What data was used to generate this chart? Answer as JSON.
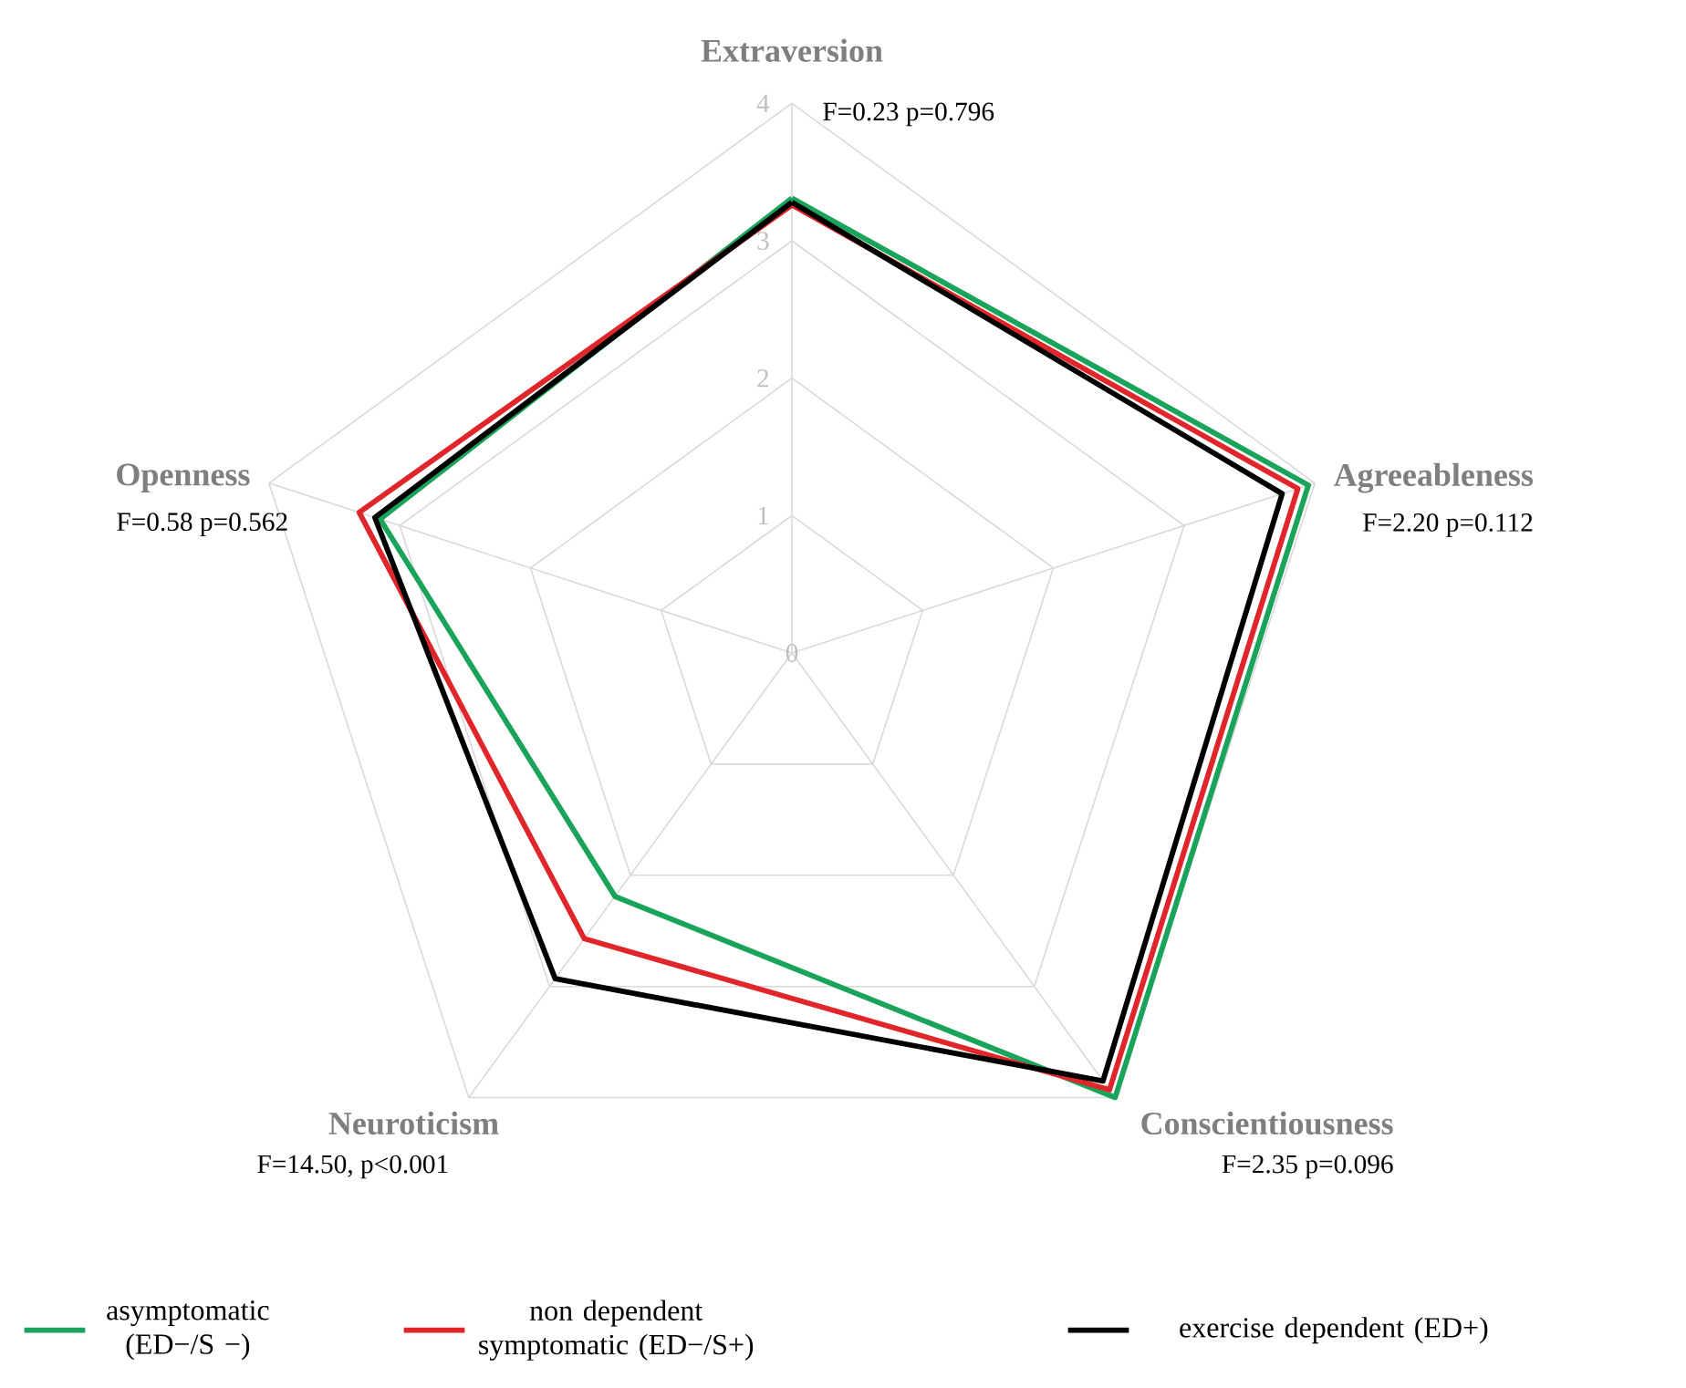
{
  "chart_data": {
    "type": "radar",
    "categories": [
      "Extraversion",
      "Agreeableness",
      "Conscientiousness",
      "Neuroticism",
      "Openness"
    ],
    "ylim": [
      0,
      4
    ],
    "yticks": [
      0,
      1,
      2,
      3,
      4
    ],
    "grid": true,
    "legend": "bottom",
    "series": [
      {
        "name": "asymptomatic (ED−/S −)",
        "color": "#1aa35a",
        "values": [
          3.31,
          3.95,
          4.0,
          2.19,
          3.15
        ]
      },
      {
        "name": "non dependent symptomatic (ED−/S+)",
        "color": "#e0262b",
        "values": [
          3.26,
          3.87,
          3.93,
          2.57,
          3.31
        ]
      },
      {
        "name": "exercise dependent (ED+)",
        "color": "#000000",
        "values": [
          3.28,
          3.75,
          3.85,
          2.93,
          3.19
        ]
      }
    ],
    "annotations": [
      "F=0.23 p=0.796",
      "F=2.20 p=0.112",
      "F=2.35 p=0.096",
      "F=14.50, p<0.001",
      "F=0.58 p=0.562"
    ]
  }
}
